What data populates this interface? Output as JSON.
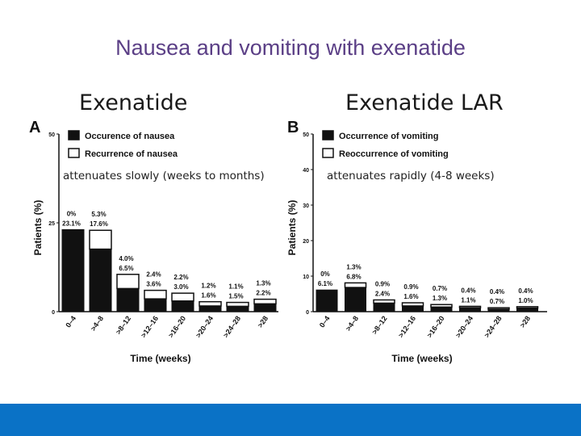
{
  "slide": {
    "title": "Nausea and vomiting with exenatide",
    "left_heading": "Exenatide",
    "right_heading": "Exenatide LAR",
    "left_caption": "attenuates slowly (weeks to months)",
    "right_caption": "attenuates rapidly (4-8 weeks)",
    "footer_color": "#0a72c6",
    "title_color": "#5b3f86"
  },
  "chart_data": [
    {
      "type": "bar",
      "panel": "A",
      "ylabel": "Patients (%)",
      "xlabel": "Time (weeks)",
      "ylim": [
        0,
        50
      ],
      "yticks": [
        "0",
        "25",
        "50"
      ],
      "legend": [
        "Occurence of nausea",
        "Recurrence of nausea"
      ],
      "categories": [
        "0–4",
        ">4–8",
        ">8–12",
        ">12–16",
        ">16–20",
        ">20–24",
        ">24–28",
        ">28"
      ],
      "series": [
        {
          "name": "Occurence of nausea",
          "values": [
            23.1,
            17.6,
            6.5,
            3.6,
            3.0,
            1.6,
            1.5,
            2.2
          ],
          "labels": [
            "23.1%",
            "17.6%",
            "6.5%",
            "3.6%",
            "3.0%",
            "1.6%",
            "1.5%",
            "2.2%"
          ]
        },
        {
          "name": "Recurrence of nausea",
          "values": [
            0,
            5.3,
            4.0,
            2.4,
            2.2,
            1.2,
            1.1,
            1.3
          ],
          "labels": [
            "0%",
            "5.3%",
            "4.0%",
            "2.4%",
            "2.2%",
            "1.2%",
            "1.1%",
            "1.3%"
          ]
        }
      ]
    },
    {
      "type": "bar",
      "panel": "B",
      "ylabel": "Patients (%)",
      "xlabel": "Time (weeks)",
      "ylim": [
        0,
        50
      ],
      "yticks": [
        "0",
        "10",
        "20",
        "30",
        "40",
        "50"
      ],
      "legend": [
        "Occurrence of vomiting",
        "Reoccurrence of vomiting"
      ],
      "categories": [
        "0–4",
        ">4–8",
        ">8–12",
        ">12–16",
        ">16–20",
        ">20–24",
        ">24–28",
        ">28"
      ],
      "series": [
        {
          "name": "Occurrence of vomiting",
          "values": [
            6.1,
            6.8,
            2.4,
            1.6,
            1.3,
            1.1,
            0.7,
            1.0
          ],
          "labels": [
            "6.1%",
            "6.8%",
            "2.4%",
            "1.6%",
            "1.3%",
            "1.1%",
            "0.7%",
            "1.0%"
          ]
        },
        {
          "name": "Reoccurrence of vomiting",
          "values": [
            0,
            1.3,
            0.9,
            0.9,
            0.7,
            0.4,
            0.4,
            0.4
          ],
          "labels": [
            "0%",
            "1.3%",
            "0.9%",
            "0.9%",
            "0.7%",
            "0.4%",
            "0.4%",
            "0.4%"
          ]
        }
      ]
    }
  ]
}
